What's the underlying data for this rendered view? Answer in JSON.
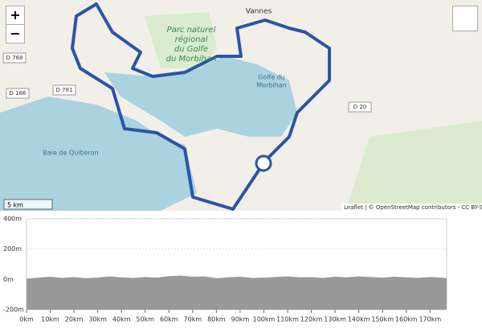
{
  "map": {
    "zoom_in": "+",
    "zoom_out": "−",
    "labels": [
      {
        "text": "Vannes",
        "kind": "town"
      },
      {
        "text": "Parc naturel",
        "kind": "park"
      },
      {
        "text": "régional",
        "kind": "park"
      },
      {
        "text": "du Golfe",
        "kind": "park"
      },
      {
        "text": "du Morbihan",
        "kind": "park"
      },
      {
        "text": "Golfe du",
        "kind": "water"
      },
      {
        "text": "Morbihan",
        "kind": "water"
      },
      {
        "text": "Baie de Quiberon",
        "kind": "water"
      },
      {
        "text": "D 768",
        "kind": "road"
      },
      {
        "text": "D 186",
        "kind": "road"
      },
      {
        "text": "D 781",
        "kind": "road"
      },
      {
        "text": "D 20",
        "kind": "road"
      }
    ],
    "scale": "5 km",
    "attribution": "Leaflet | © OpenStreetMap contributors - CC BY-SA"
  },
  "chart_data": {
    "type": "area",
    "color": "#999999",
    "x": [
      0,
      5,
      10,
      15,
      20,
      25,
      30,
      35,
      40,
      45,
      50,
      55,
      60,
      65,
      70,
      75,
      80,
      85,
      90,
      95,
      100,
      105,
      110,
      115,
      120,
      125,
      130,
      135,
      140,
      145,
      150,
      155,
      160,
      165,
      170,
      175,
      177
    ],
    "values": [
      5,
      12,
      18,
      10,
      15,
      8,
      12,
      20,
      14,
      10,
      16,
      12,
      22,
      25,
      18,
      20,
      8,
      14,
      18,
      10,
      12,
      16,
      20,
      14,
      15,
      10,
      18,
      14,
      20,
      16,
      12,
      18,
      14,
      10,
      16,
      12,
      8
    ],
    "xlim": [
      0,
      177
    ],
    "ylim": [
      -200,
      400
    ],
    "xticks": [
      {
        "value": 0,
        "label": "0km"
      },
      {
        "value": 10,
        "label": "10km"
      },
      {
        "value": 20,
        "label": "20km"
      },
      {
        "value": 30,
        "label": "30km"
      },
      {
        "value": 40,
        "label": "40km"
      },
      {
        "value": 50,
        "label": "50km"
      },
      {
        "value": 60,
        "label": "60km"
      },
      {
        "value": 70,
        "label": "70km"
      },
      {
        "value": 80,
        "label": "80km"
      },
      {
        "value": 90,
        "label": "90km"
      },
      {
        "value": 100,
        "label": "100km"
      },
      {
        "value": 110,
        "label": "110km"
      },
      {
        "value": 120,
        "label": "120km"
      },
      {
        "value": 130,
        "label": "130km"
      },
      {
        "value": 140,
        "label": "140km"
      },
      {
        "value": 150,
        "label": "150km"
      },
      {
        "value": 160,
        "label": "160km"
      },
      {
        "value": 170,
        "label": "170km"
      }
    ],
    "yticks": [
      {
        "value": 400,
        "label": "400m"
      },
      {
        "value": 200,
        "label": "200m"
      },
      {
        "value": 0,
        "label": "0m"
      },
      {
        "value": -200,
        "label": "-200m"
      }
    ]
  }
}
